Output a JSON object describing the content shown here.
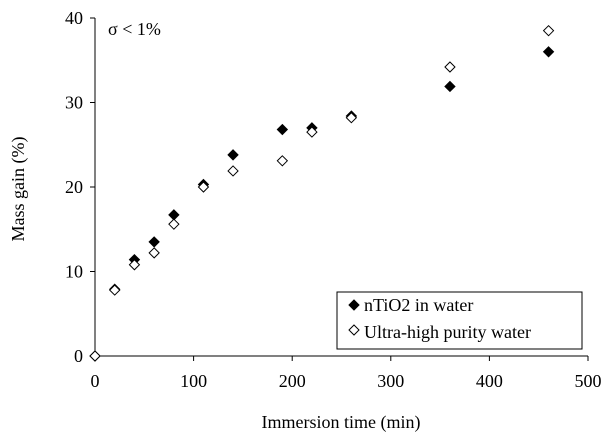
{
  "chart_data": {
    "type": "scatter",
    "title": "",
    "annotation": "σ < 1%",
    "xlabel": "Immersion time (min)",
    "ylabel": "Mass gain (%)",
    "xlim": [
      0,
      500
    ],
    "ylim": [
      0,
      40
    ],
    "x_ticks": [
      0,
      100,
      200,
      300,
      400,
      500
    ],
    "y_ticks": [
      0,
      10,
      20,
      30,
      40
    ],
    "grid": false,
    "legend_position": "bottom-right",
    "series": [
      {
        "name": "nTiO2 in water",
        "marker": "filled-diamond",
        "color": "#000000",
        "x": [
          0,
          20,
          40,
          60,
          80,
          110,
          140,
          190,
          220,
          260,
          360,
          460
        ],
        "y": [
          0,
          7.9,
          11.4,
          13.5,
          16.7,
          20.3,
          23.8,
          26.8,
          27.0,
          28.4,
          31.9,
          36.0
        ]
      },
      {
        "name": "Ultra-high purity water",
        "marker": "open-diamond",
        "color": "#000000",
        "x": [
          0,
          20,
          40,
          60,
          80,
          110,
          140,
          190,
          220,
          260,
          360,
          460
        ],
        "y": [
          0,
          7.8,
          10.8,
          12.2,
          15.6,
          20.0,
          21.9,
          23.1,
          26.5,
          28.2,
          34.2,
          38.5
        ]
      }
    ]
  }
}
